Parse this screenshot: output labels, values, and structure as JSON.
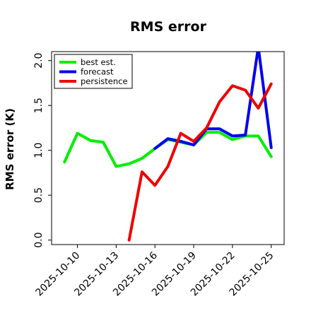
{
  "chart_data": {
    "type": "line",
    "title": "RMS error",
    "ylabel": "RMS error (K)",
    "xlabel": "",
    "ylim": [
      -0.05,
      2.1
    ],
    "xlim": [
      "2025-10-08",
      "2025-10-26"
    ],
    "yticks": [
      "0.0",
      "0.5",
      "1.0",
      "1.5",
      "2.0"
    ],
    "xticks": [
      {
        "label": "2025-10-10",
        "color": "#000000"
      },
      {
        "label": "2025-10-13",
        "color": "#000000"
      },
      {
        "label": "2025-10-16",
        "color": "#2e8b2e"
      },
      {
        "label": "2025-10-19",
        "color": "#000000"
      },
      {
        "label": "2025-10-22",
        "color": "#000000"
      },
      {
        "label": "2025-10-25",
        "color": "#000000"
      }
    ],
    "legend": "top-left",
    "grid": false,
    "series": [
      {
        "name": "best est.",
        "color": "#00ee00",
        "x": [
          "2025-10-09",
          "2025-10-10",
          "2025-10-11",
          "2025-10-12",
          "2025-10-13",
          "2025-10-14",
          "2025-10-15",
          "2025-10-16",
          "2025-10-17",
          "2025-10-18",
          "2025-10-19",
          "2025-10-20",
          "2025-10-21",
          "2025-10-22",
          "2025-10-23",
          "2025-10-24",
          "2025-10-25"
        ],
        "values": [
          0.87,
          1.19,
          1.11,
          1.09,
          0.82,
          0.85,
          0.91,
          1.02,
          1.12,
          1.09,
          1.06,
          1.2,
          1.2,
          1.12,
          1.16,
          1.16,
          0.93
        ]
      },
      {
        "name": "forecast",
        "color": "#0000ee",
        "x": [
          "2025-10-16",
          "2025-10-17",
          "2025-10-18",
          "2025-10-19",
          "2025-10-20",
          "2025-10-21",
          "2025-10-22",
          "2025-10-23",
          "2025-10-24",
          "2025-10-25"
        ],
        "values": [
          1.02,
          1.13,
          1.1,
          1.06,
          1.24,
          1.24,
          1.16,
          1.17,
          2.15,
          1.03
        ]
      },
      {
        "name": "persistence",
        "color": "#ee0000",
        "x": [
          "2025-10-14",
          "2025-10-15",
          "2025-10-16",
          "2025-10-17",
          "2025-10-18",
          "2025-10-19",
          "2025-10-20",
          "2025-10-21",
          "2025-10-22",
          "2025-10-23",
          "2025-10-24",
          "2025-10-25"
        ],
        "values": [
          0.0,
          0.76,
          0.61,
          0.82,
          1.19,
          1.1,
          1.25,
          1.54,
          1.72,
          1.67,
          1.47,
          1.74
        ]
      }
    ]
  }
}
